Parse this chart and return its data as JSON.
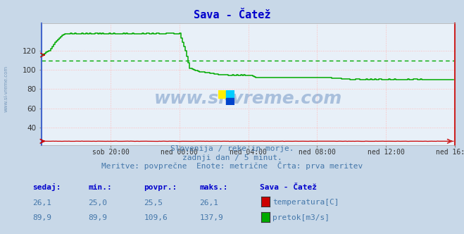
{
  "title": "Sava - Čatež",
  "title_color": "#0000cc",
  "bg_color": "#c8d8e8",
  "plot_bg_color": "#e8f0f8",
  "grid_color_h": "#ffbbbb",
  "grid_color_v": "#ffbbbb",
  "left_border_color": "#4466cc",
  "right_border_color": "#cc2222",
  "watermark": "www.si-vreme.com",
  "watermark_color": "#3366aa",
  "watermark_alpha": 0.35,
  "xlabel_ticks": [
    "sob 20:00",
    "ned 00:00",
    "ned 04:00",
    "ned 08:00",
    "ned 12:00",
    "ned 16:00"
  ],
  "ylim": [
    22,
    148
  ],
  "yticks": [
    40,
    60,
    80,
    100,
    120
  ],
  "temp_color": "#cc0000",
  "flow_color": "#00aa00",
  "avg_flow_color": "#00aa00",
  "avg_flow_value": 109.6,
  "subtitle1": "Slovenija / reke in morje.",
  "subtitle2": "zadnji dan / 5 minut.",
  "subtitle3": "Meritve: povprečne  Enote: metrične  Črta: prva meritev",
  "subtitle_color": "#4477aa",
  "subtitle_fontsize": 8,
  "table_header": [
    "sedaj:",
    "min.:",
    "povpr.:",
    "maks.:",
    "Sava - Čatež"
  ],
  "table_header_color": "#0000cc",
  "table_row1": [
    "26,1",
    "25,0",
    "25,5",
    "26,1",
    "temperatura[C]"
  ],
  "table_row2": [
    "89,9",
    "89,9",
    "109,6",
    "137,9",
    "pretok[m3/s]"
  ],
  "table_value_color": "#4477aa",
  "n_points": 288
}
